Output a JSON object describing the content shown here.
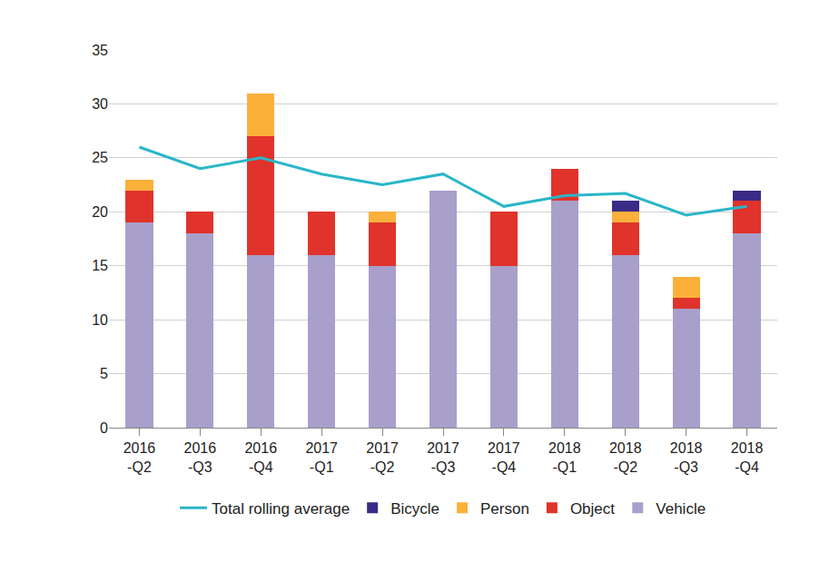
{
  "chart_data": {
    "type": "bar",
    "stacked": true,
    "grid": true,
    "legend": "bottom",
    "categories": [
      "2016-Q2",
      "2016-Q3",
      "2016-Q4",
      "2017-Q1",
      "2017-Q2",
      "2017-Q3",
      "2017-Q4",
      "2018-Q1",
      "2018-Q2",
      "2018-Q3",
      "2018-Q4"
    ],
    "series": [
      {
        "name": "Vehicle",
        "color": "#a99fcb",
        "values": [
          19,
          18,
          16,
          16,
          15,
          22,
          15,
          21,
          16,
          11,
          18
        ]
      },
      {
        "name": "Object",
        "color": "#e0332b",
        "values": [
          3,
          2,
          11,
          4,
          4,
          0,
          5,
          3,
          3,
          1,
          3
        ]
      },
      {
        "name": "Person",
        "color": "#fbb03b",
        "values": [
          1,
          0,
          4,
          0,
          1,
          0,
          0,
          0,
          1,
          2,
          0
        ]
      },
      {
        "name": "Bicycle",
        "color": "#3b2a86",
        "values": [
          0,
          0,
          0,
          0,
          0,
          0,
          0,
          0,
          1,
          0,
          1
        ]
      },
      {
        "name": "Total rolling average",
        "color": "#2ab6c8",
        "type": "line",
        "values": [
          26,
          24,
          25,
          23.5,
          22.5,
          23.5,
          20.5,
          21.5,
          21.7,
          19.7,
          20.5
        ]
      }
    ],
    "ylim": [
      0,
      35
    ],
    "yticks": [
      0,
      5,
      10,
      15,
      20,
      25,
      30,
      35
    ]
  }
}
